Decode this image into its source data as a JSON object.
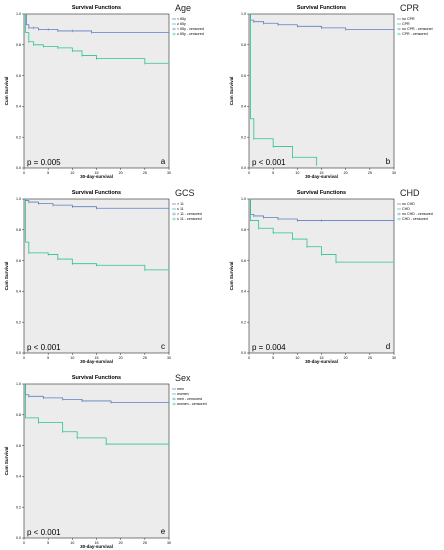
{
  "figure": {
    "colors": {
      "series1": "#5b7fc4",
      "series2": "#2bc48a",
      "plot_background": "#ececec"
    }
  },
  "chart_data": [
    {
      "id": "a",
      "type": "line",
      "title": "Survival Functions",
      "variable": "Age",
      "xlabel": "30-day-survival",
      "ylabel": "Cum Survival",
      "xlim": [
        0,
        30
      ],
      "ylim": [
        0,
        1.0
      ],
      "x_ticks": [
        "0",
        "5",
        "10",
        "15",
        "20",
        "25",
        "30"
      ],
      "y_ticks": [
        "0.0",
        "0.2",
        "0.4",
        "0.6",
        "0.8",
        "1.0"
      ],
      "grid": false,
      "legend": "top-right",
      "p_value": "p = 0.005",
      "panel_letter": "a",
      "legend_entries": [
        "< 65y",
        "≥ 65y",
        "< 65y - censored",
        "≥ 65y - censored"
      ],
      "series": [
        {
          "name": "< 65y",
          "x": [
            0,
            0.5,
            1,
            2,
            3,
            5,
            7,
            10,
            14,
            30
          ],
          "y": [
            1.0,
            0.93,
            0.91,
            0.91,
            0.9,
            0.9,
            0.89,
            0.89,
            0.88,
            0.88
          ]
        },
        {
          "name": "≥ 65y",
          "x": [
            0,
            0.3,
            1,
            2,
            4,
            7,
            10,
            12,
            15,
            25,
            30
          ],
          "y": [
            1.0,
            0.88,
            0.82,
            0.8,
            0.79,
            0.78,
            0.76,
            0.73,
            0.71,
            0.68,
            0.68
          ]
        }
      ]
    },
    {
      "id": "b",
      "type": "line",
      "title": "Survival Functions",
      "variable": "CPR",
      "xlabel": "30-day-survival",
      "ylabel": "Cum Survival",
      "xlim": [
        0,
        30
      ],
      "ylim": [
        0,
        1.0
      ],
      "x_ticks": [
        "0",
        "5",
        "10",
        "15",
        "20",
        "25",
        "30"
      ],
      "y_ticks": [
        "0.0",
        "0.2",
        "0.4",
        "0.6",
        "0.8",
        "1.0"
      ],
      "grid": false,
      "legend": "top-right",
      "p_value": "p < 0.001",
      "panel_letter": "b",
      "legend_entries": [
        "no CPR",
        "CPR",
        "no CPR - censored",
        "CPR - censored"
      ],
      "series": [
        {
          "name": "no CPR",
          "x": [
            0,
            0.3,
            1,
            3,
            6,
            10,
            15,
            20,
            30
          ],
          "y": [
            1.0,
            0.96,
            0.95,
            0.94,
            0.93,
            0.92,
            0.91,
            0.9,
            0.9
          ]
        },
        {
          "name": "CPR",
          "x": [
            0,
            0.3,
            1,
            5,
            9,
            14
          ],
          "y": [
            1.0,
            0.32,
            0.19,
            0.14,
            0.07,
            0.02
          ]
        }
      ]
    },
    {
      "id": "c",
      "type": "line",
      "title": "Survival Functions",
      "variable": "GCS",
      "xlabel": "30-day-survival",
      "ylabel": "Cum Survival",
      "xlim": [
        0,
        30
      ],
      "ylim": [
        0,
        1.0
      ],
      "x_ticks": [
        "0",
        "5",
        "10",
        "15",
        "20",
        "25",
        "30"
      ],
      "y_ticks": [
        "0.0",
        "0.2",
        "0.4",
        "0.6",
        "0.8",
        "1.0"
      ],
      "grid": false,
      "legend": "top-right",
      "p_value": "p < 0.001",
      "panel_letter": "c",
      "legend_entries": [
        "> 11",
        "≤ 11",
        "> 11 - censored",
        "≤ 11 - censored"
      ],
      "series": [
        {
          "name": "> 11",
          "x": [
            0,
            0.3,
            1,
            3,
            6,
            10,
            15,
            30
          ],
          "y": [
            1.0,
            0.99,
            0.98,
            0.97,
            0.96,
            0.95,
            0.94,
            0.94
          ]
        },
        {
          "name": "≤ 11",
          "x": [
            0,
            0.3,
            1,
            5,
            7,
            10,
            15,
            25,
            30
          ],
          "y": [
            1.0,
            0.72,
            0.65,
            0.64,
            0.61,
            0.58,
            0.57,
            0.54,
            0.54
          ]
        }
      ]
    },
    {
      "id": "d",
      "type": "line",
      "title": "Survival Functions",
      "variable": "CHD",
      "xlabel": "30-day-survival",
      "ylabel": "Cum Survival",
      "xlim": [
        0,
        30
      ],
      "ylim": [
        0,
        1.0
      ],
      "x_ticks": [
        "0",
        "5",
        "10",
        "15",
        "20",
        "25",
        "30"
      ],
      "y_ticks": [
        "0.0",
        "0.2",
        "0.4",
        "0.6",
        "0.8",
        "1.0"
      ],
      "grid": false,
      "legend": "top-right",
      "p_value": "p = 0.004",
      "panel_letter": "d",
      "legend_entries": [
        "no CHD",
        "CHD",
        "no CHD - censored",
        "CHD - censored"
      ],
      "series": [
        {
          "name": "no CHD",
          "x": [
            0,
            0.3,
            1,
            3,
            6,
            10,
            15,
            30
          ],
          "y": [
            1.0,
            0.9,
            0.89,
            0.88,
            0.87,
            0.86,
            0.86,
            0.86
          ]
        },
        {
          "name": "CHD",
          "x": [
            0,
            0.3,
            2,
            5,
            9,
            12,
            15,
            18,
            30
          ],
          "y": [
            1.0,
            0.86,
            0.81,
            0.78,
            0.74,
            0.69,
            0.64,
            0.59,
            0.59
          ]
        }
      ]
    },
    {
      "id": "e",
      "type": "line",
      "title": "Survival Functions",
      "variable": "Sex",
      "xlabel": "30-day-survival",
      "ylabel": "Cum Survival",
      "xlim": [
        0,
        30
      ],
      "ylim": [
        0,
        1.0
      ],
      "x_ticks": [
        "0",
        "5",
        "10",
        "15",
        "20",
        "25",
        "30"
      ],
      "y_ticks": [
        "0.0",
        "0.2",
        "0.4",
        "0.6",
        "0.8",
        "1.0"
      ],
      "grid": false,
      "legend": "top-right",
      "p_value": "p < 0.001",
      "panel_letter": "e",
      "legend_entries": [
        "men",
        "women",
        "men - censored",
        "women - censored"
      ],
      "series": [
        {
          "name": "men",
          "x": [
            0,
            0.3,
            1,
            4,
            8,
            12,
            18,
            30
          ],
          "y": [
            1.0,
            0.93,
            0.92,
            0.91,
            0.9,
            0.89,
            0.88,
            0.88
          ]
        },
        {
          "name": "women",
          "x": [
            0,
            0.3,
            3,
            8,
            11,
            17,
            30
          ],
          "y": [
            1.0,
            0.78,
            0.75,
            0.69,
            0.65,
            0.61,
            0.61
          ]
        }
      ]
    }
  ]
}
